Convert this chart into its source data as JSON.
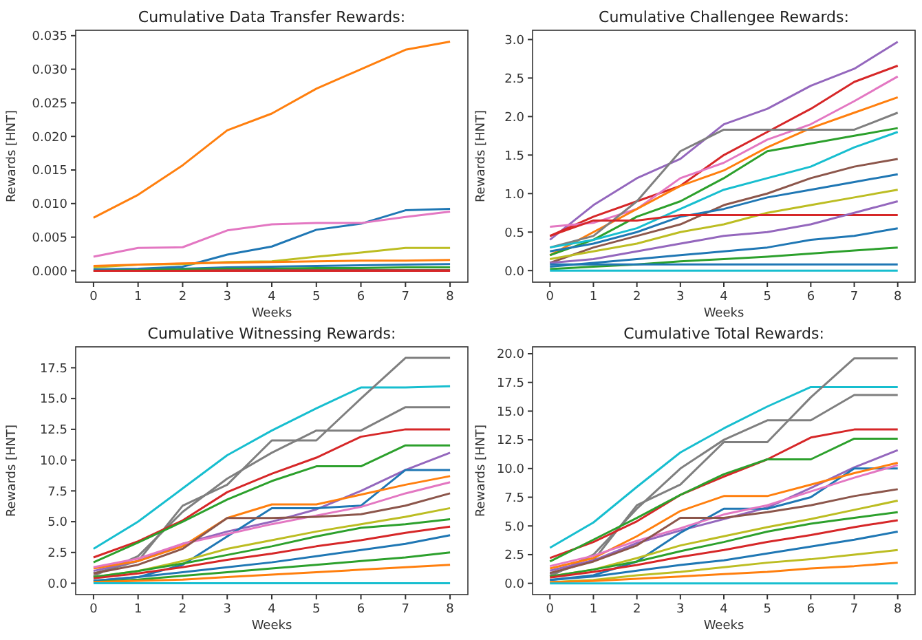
{
  "chart_data": [
    {
      "type": "line",
      "title": "Cumulative Data Transfer Rewards:",
      "xlabel": "Weeks",
      "ylabel": "Rewards [HNT]",
      "x": [
        0,
        1,
        2,
        3,
        4,
        5,
        6,
        7,
        8
      ],
      "xlim": [
        -0.4,
        8.4
      ],
      "xticks": [
        0,
        1,
        2,
        3,
        4,
        5,
        6,
        7,
        8
      ],
      "ylim": [
        -0.0017,
        0.0358
      ],
      "yticks": [
        {
          "value": 0,
          "label": "0.000"
        },
        {
          "value": 0.005,
          "label": "0.005"
        },
        {
          "value": 0.01,
          "label": "0.010"
        },
        {
          "value": 0.015,
          "label": "0.015"
        },
        {
          "value": 0.02,
          "label": "0.020"
        },
        {
          "value": 0.025,
          "label": "0.025"
        },
        {
          "value": 0.03,
          "label": "0.030"
        },
        {
          "value": 0.035,
          "label": "0.035"
        }
      ],
      "series": [
        {
          "color": "#ff7f0e",
          "values": [
            0.0079,
            0.0113,
            0.0157,
            0.0209,
            0.0234,
            0.0271,
            0.03,
            0.0329,
            0.0341
          ]
        },
        {
          "color": "#1f77b4",
          "values": [
            0.0002,
            0.0003,
            0.0006,
            0.0024,
            0.0036,
            0.0061,
            0.007,
            0.009,
            0.0092
          ]
        },
        {
          "color": "#e377c2",
          "values": [
            0.0021,
            0.0034,
            0.0035,
            0.006,
            0.0069,
            0.0071,
            0.0071,
            0.008,
            0.0088
          ]
        },
        {
          "color": "#bcbd22",
          "values": [
            0.0005,
            0.0009,
            0.001,
            0.0013,
            0.0014,
            0.0021,
            0.0027,
            0.0034,
            0.0034
          ]
        },
        {
          "color": "#ff7f0e",
          "values": [
            0.0007,
            0.0009,
            0.0011,
            0.0012,
            0.0013,
            0.0014,
            0.0015,
            0.0015,
            0.0016
          ]
        },
        {
          "color": "#1f77b4",
          "values": [
            0.0001,
            0.0002,
            0.0003,
            0.0005,
            0.0006,
            0.0007,
            0.0008,
            0.0009,
            0.001
          ]
        },
        {
          "color": "#2ca02c",
          "values": [
            0,
            0.0001,
            0.0002,
            0.0003,
            0.0003,
            0.0004,
            0.0004,
            0.0005,
            0.0005
          ]
        },
        {
          "color": "#8c564b",
          "values": [
            0,
            0,
            0,
            0.0001,
            0.0001,
            0.0001,
            0.0001,
            0.0001,
            0.0001
          ]
        },
        {
          "color": "#d62728",
          "values": [
            0,
            0,
            0,
            0,
            0,
            0,
            0,
            0,
            0
          ]
        }
      ]
    },
    {
      "type": "line",
      "title": "Cumulative Challengee Rewards:",
      "xlabel": "Weeks",
      "ylabel": "Rewards [HNT]",
      "x": [
        0,
        1,
        2,
        3,
        4,
        5,
        6,
        7,
        8
      ],
      "xlim": [
        -0.4,
        8.4
      ],
      "xticks": [
        0,
        1,
        2,
        3,
        4,
        5,
        6,
        7,
        8
      ],
      "ylim": [
        -0.15,
        3.12
      ],
      "yticks": [
        {
          "value": 0,
          "label": "0.0"
        },
        {
          "value": 0.5,
          "label": "0.5"
        },
        {
          "value": 1,
          "label": "1.0"
        },
        {
          "value": 1.5,
          "label": "1.5"
        },
        {
          "value": 2,
          "label": "2.0"
        },
        {
          "value": 2.5,
          "label": "2.5"
        },
        {
          "value": 3,
          "label": "3.0"
        }
      ],
      "series": [
        {
          "color": "#9467bd",
          "values": [
            0.4,
            0.85,
            1.2,
            1.45,
            1.9,
            2.1,
            2.4,
            2.62,
            2.97
          ]
        },
        {
          "color": "#d62728",
          "values": [
            0.45,
            0.7,
            0.9,
            1.1,
            1.5,
            1.8,
            2.1,
            2.45,
            2.66
          ]
        },
        {
          "color": "#e377c2",
          "values": [
            0.57,
            0.62,
            0.8,
            1.2,
            1.4,
            1.7,
            1.9,
            2.2,
            2.52
          ]
        },
        {
          "color": "#ff7f0e",
          "values": [
            0.2,
            0.5,
            0.8,
            1.1,
            1.3,
            1.6,
            1.85,
            2.05,
            2.25
          ]
        },
        {
          "color": "#7f7f7f",
          "values": [
            0.3,
            0.45,
            0.9,
            1.55,
            1.83,
            1.83,
            1.83,
            1.83,
            2.05
          ]
        },
        {
          "color": "#2ca02c",
          "values": [
            0.2,
            0.4,
            0.7,
            0.9,
            1.2,
            1.55,
            1.65,
            1.75,
            1.85
          ]
        },
        {
          "color": "#17becf",
          "values": [
            0.3,
            0.4,
            0.55,
            0.8,
            1.05,
            1.2,
            1.35,
            1.6,
            1.8
          ]
        },
        {
          "color": "#8c564b",
          "values": [
            0.1,
            0.3,
            0.45,
            0.6,
            0.85,
            1,
            1.2,
            1.35,
            1.45
          ]
        },
        {
          "color": "#1f77b4",
          "values": [
            0.25,
            0.35,
            0.5,
            0.7,
            0.8,
            0.95,
            1.05,
            1.15,
            1.25
          ]
        },
        {
          "color": "#bcbd22",
          "values": [
            0.15,
            0.25,
            0.35,
            0.5,
            0.6,
            0.75,
            0.85,
            0.95,
            1.05
          ]
        },
        {
          "color": "#d62728",
          "values": [
            0.45,
            0.65,
            0.65,
            0.72,
            0.72,
            0.72,
            0.72,
            0.72,
            0.72
          ]
        },
        {
          "color": "#9467bd",
          "values": [
            0.1,
            0.15,
            0.25,
            0.35,
            0.45,
            0.5,
            0.6,
            0.75,
            0.9
          ]
        },
        {
          "color": "#1f77b4",
          "values": [
            0.05,
            0.1,
            0.15,
            0.2,
            0.25,
            0.3,
            0.4,
            0.45,
            0.55
          ]
        },
        {
          "color": "#2ca02c",
          "values": [
            0.02,
            0.05,
            0.08,
            0.12,
            0.15,
            0.18,
            0.22,
            0.26,
            0.3
          ]
        },
        {
          "color": "#1f77b4",
          "values": [
            0.08,
            0.08,
            0.08,
            0.08,
            0.08,
            0.08,
            0.08,
            0.08,
            0.08
          ]
        },
        {
          "color": "#17becf",
          "values": [
            0,
            0,
            0,
            0,
            0,
            0,
            0,
            0,
            0
          ]
        }
      ]
    },
    {
      "type": "line",
      "title": "Cumulative Witnessing Rewards:",
      "xlabel": "Weeks",
      "ylabel": "Rewards [HNT]",
      "x": [
        0,
        1,
        2,
        3,
        4,
        5,
        6,
        7,
        8
      ],
      "xlim": [
        -0.4,
        8.4
      ],
      "xticks": [
        0,
        1,
        2,
        3,
        4,
        5,
        6,
        7,
        8
      ],
      "ylim": [
        -0.92,
        19.2
      ],
      "yticks": [
        {
          "value": 0,
          "label": "0.0"
        },
        {
          "value": 2.5,
          "label": "2.5"
        },
        {
          "value": 5,
          "label": "5.0"
        },
        {
          "value": 7.5,
          "label": "7.5"
        },
        {
          "value": 10,
          "label": "10.0"
        },
        {
          "value": 12.5,
          "label": "12.5"
        },
        {
          "value": 15,
          "label": "15.0"
        },
        {
          "value": 17.5,
          "label": "17.5"
        }
      ],
      "series": [
        {
          "color": "#17becf",
          "values": [
            2.8,
            5,
            7.7,
            10.4,
            12.4,
            14.2,
            15.9,
            15.9,
            16
          ]
        },
        {
          "color": "#7f7f7f",
          "values": [
            0.8,
            1.8,
            6.3,
            8,
            11.6,
            11.6,
            15,
            18.3,
            18.3
          ]
        },
        {
          "color": "#7f7f7f",
          "values": [
            0.6,
            2.2,
            5.8,
            8.5,
            10.6,
            12.4,
            12.4,
            14.3,
            14.3
          ]
        },
        {
          "color": "#d62728",
          "values": [
            2.1,
            3.4,
            5.1,
            7.4,
            8.9,
            10.2,
            11.9,
            12.5,
            12.5
          ]
        },
        {
          "color": "#2ca02c",
          "values": [
            1.7,
            3.3,
            5,
            6.8,
            8.3,
            9.5,
            9.5,
            11.2,
            11.2
          ]
        },
        {
          "color": "#9467bd",
          "values": [
            1,
            1.8,
            3.2,
            4.2,
            5,
            6,
            7.5,
            9.2,
            10.6
          ]
        },
        {
          "color": "#1f77b4",
          "values": [
            0.2,
            0.5,
            1.5,
            3.8,
            6.1,
            6.1,
            6.3,
            9.2,
            9.2
          ]
        },
        {
          "color": "#ff7f0e",
          "values": [
            1.2,
            1.8,
            3,
            5.3,
            6.4,
            6.4,
            7.2,
            8,
            8.7
          ]
        },
        {
          "color": "#e377c2",
          "values": [
            1.3,
            2,
            3.2,
            4,
            4.8,
            5.5,
            6.2,
            7.3,
            8.2
          ]
        },
        {
          "color": "#8c564b",
          "values": [
            0.8,
            1.5,
            2.8,
            5.3,
            5.3,
            5.4,
            5.6,
            6.3,
            7.3
          ]
        },
        {
          "color": "#bcbd22",
          "values": [
            0.5,
            1,
            1.8,
            2.8,
            3.5,
            4.2,
            4.8,
            5.4,
            6.1
          ]
        },
        {
          "color": "#2ca02c",
          "values": [
            0.5,
            1,
            1.6,
            2.3,
            3,
            3.8,
            4.5,
            4.8,
            5.2
          ]
        },
        {
          "color": "#d62728",
          "values": [
            0.4,
            0.8,
            1.3,
            1.9,
            2.4,
            3,
            3.5,
            4.1,
            4.6
          ]
        },
        {
          "color": "#1f77b4",
          "values": [
            0.2,
            0.5,
            0.9,
            1.3,
            1.7,
            2.2,
            2.7,
            3.2,
            3.9
          ]
        },
        {
          "color": "#2ca02c",
          "values": [
            0.1,
            0.3,
            0.6,
            0.9,
            1.2,
            1.5,
            1.8,
            2.1,
            2.5
          ]
        },
        {
          "color": "#ff7f0e",
          "values": [
            0.1,
            0.2,
            0.3,
            0.5,
            0.7,
            0.9,
            1.1,
            1.3,
            1.5
          ]
        },
        {
          "color": "#17becf",
          "values": [
            0,
            0,
            0,
            0,
            0,
            0,
            0,
            0,
            0
          ]
        }
      ]
    },
    {
      "type": "line",
      "title": "Cumulative Total Rewards:",
      "xlabel": "Weeks",
      "ylabel": "Rewards [HNT]",
      "x": [
        0,
        1,
        2,
        3,
        4,
        5,
        6,
        7,
        8
      ],
      "xlim": [
        -0.4,
        8.4
      ],
      "xticks": [
        0,
        1,
        2,
        3,
        4,
        5,
        6,
        7,
        8
      ],
      "ylim": [
        -0.98,
        20.6
      ],
      "yticks": [
        {
          "value": 0,
          "label": "0.0"
        },
        {
          "value": 2.5,
          "label": "2.5"
        },
        {
          "value": 5,
          "label": "5.0"
        },
        {
          "value": 7.5,
          "label": "7.5"
        },
        {
          "value": 10,
          "label": "10.0"
        },
        {
          "value": 12.5,
          "label": "12.5"
        },
        {
          "value": 15,
          "label": "15.0"
        },
        {
          "value": 17.5,
          "label": "17.5"
        },
        {
          "value": 20,
          "label": "20.0"
        }
      ],
      "series": [
        {
          "color": "#17becf",
          "values": [
            3.1,
            5.3,
            8.4,
            11.4,
            13.5,
            15.4,
            17.1,
            17.1,
            17.1
          ]
        },
        {
          "color": "#7f7f7f",
          "values": [
            0.8,
            2,
            6.8,
            8.6,
            12.3,
            12.3,
            16.2,
            19.6,
            19.6
          ]
        },
        {
          "color": "#7f7f7f",
          "values": [
            0.6,
            2.5,
            6.5,
            10,
            12.5,
            14.2,
            14.2,
            16.4,
            16.4
          ]
        },
        {
          "color": "#d62728",
          "values": [
            2.2,
            3.6,
            5.4,
            7.7,
            9.3,
            10.8,
            12.7,
            13.4,
            13.4
          ]
        },
        {
          "color": "#2ca02c",
          "values": [
            1.9,
            3.8,
            5.7,
            7.7,
            9.5,
            10.8,
            10.8,
            12.6,
            12.6
          ]
        },
        {
          "color": "#9467bd",
          "values": [
            1.1,
            2,
            3.5,
            4.6,
            5.6,
            6.6,
            8.3,
            10.1,
            11.6
          ]
        },
        {
          "color": "#1f77b4",
          "values": [
            0.3,
            0.7,
            1.9,
            4.4,
            6.5,
            6.5,
            7.5,
            10,
            10
          ]
        },
        {
          "color": "#ff7f0e",
          "values": [
            1.3,
            2.2,
            4.1,
            6.3,
            7.6,
            7.6,
            8.6,
            9.6,
            10.5
          ]
        },
        {
          "color": "#e377c2",
          "values": [
            1.5,
            2.4,
            3.7,
            4.8,
            6,
            6.8,
            8,
            9.2,
            10.3
          ]
        },
        {
          "color": "#8c564b",
          "values": [
            0.9,
            1.9,
            3.3,
            5.7,
            5.7,
            6.2,
            6.8,
            7.6,
            8.2
          ]
        },
        {
          "color": "#bcbd22",
          "values": [
            0.6,
            1.2,
            2.2,
            3.3,
            4.1,
            4.9,
            5.6,
            6.4,
            7.2
          ]
        },
        {
          "color": "#2ca02c",
          "values": [
            0.6,
            1.2,
            1.9,
            2.8,
            3.6,
            4.5,
            5.2,
            5.7,
            6.2
          ]
        },
        {
          "color": "#d62728",
          "values": [
            0.5,
            1,
            1.6,
            2.3,
            2.9,
            3.6,
            4.2,
            4.9,
            5.5
          ]
        },
        {
          "color": "#1f77b4",
          "values": [
            0.3,
            0.6,
            1.1,
            1.6,
            2,
            2.6,
            3.2,
            3.8,
            4.5
          ]
        },
        {
          "color": "#bcbd22",
          "values": [
            0.1,
            0.3,
            0.7,
            1,
            1.4,
            1.8,
            2.1,
            2.5,
            2.9
          ]
        },
        {
          "color": "#ff7f0e",
          "values": [
            0.1,
            0.2,
            0.4,
            0.6,
            0.8,
            1,
            1.3,
            1.5,
            1.8
          ]
        },
        {
          "color": "#17becf",
          "values": [
            0,
            0,
            0,
            0,
            0,
            0,
            0,
            0,
            0
          ]
        }
      ]
    }
  ]
}
